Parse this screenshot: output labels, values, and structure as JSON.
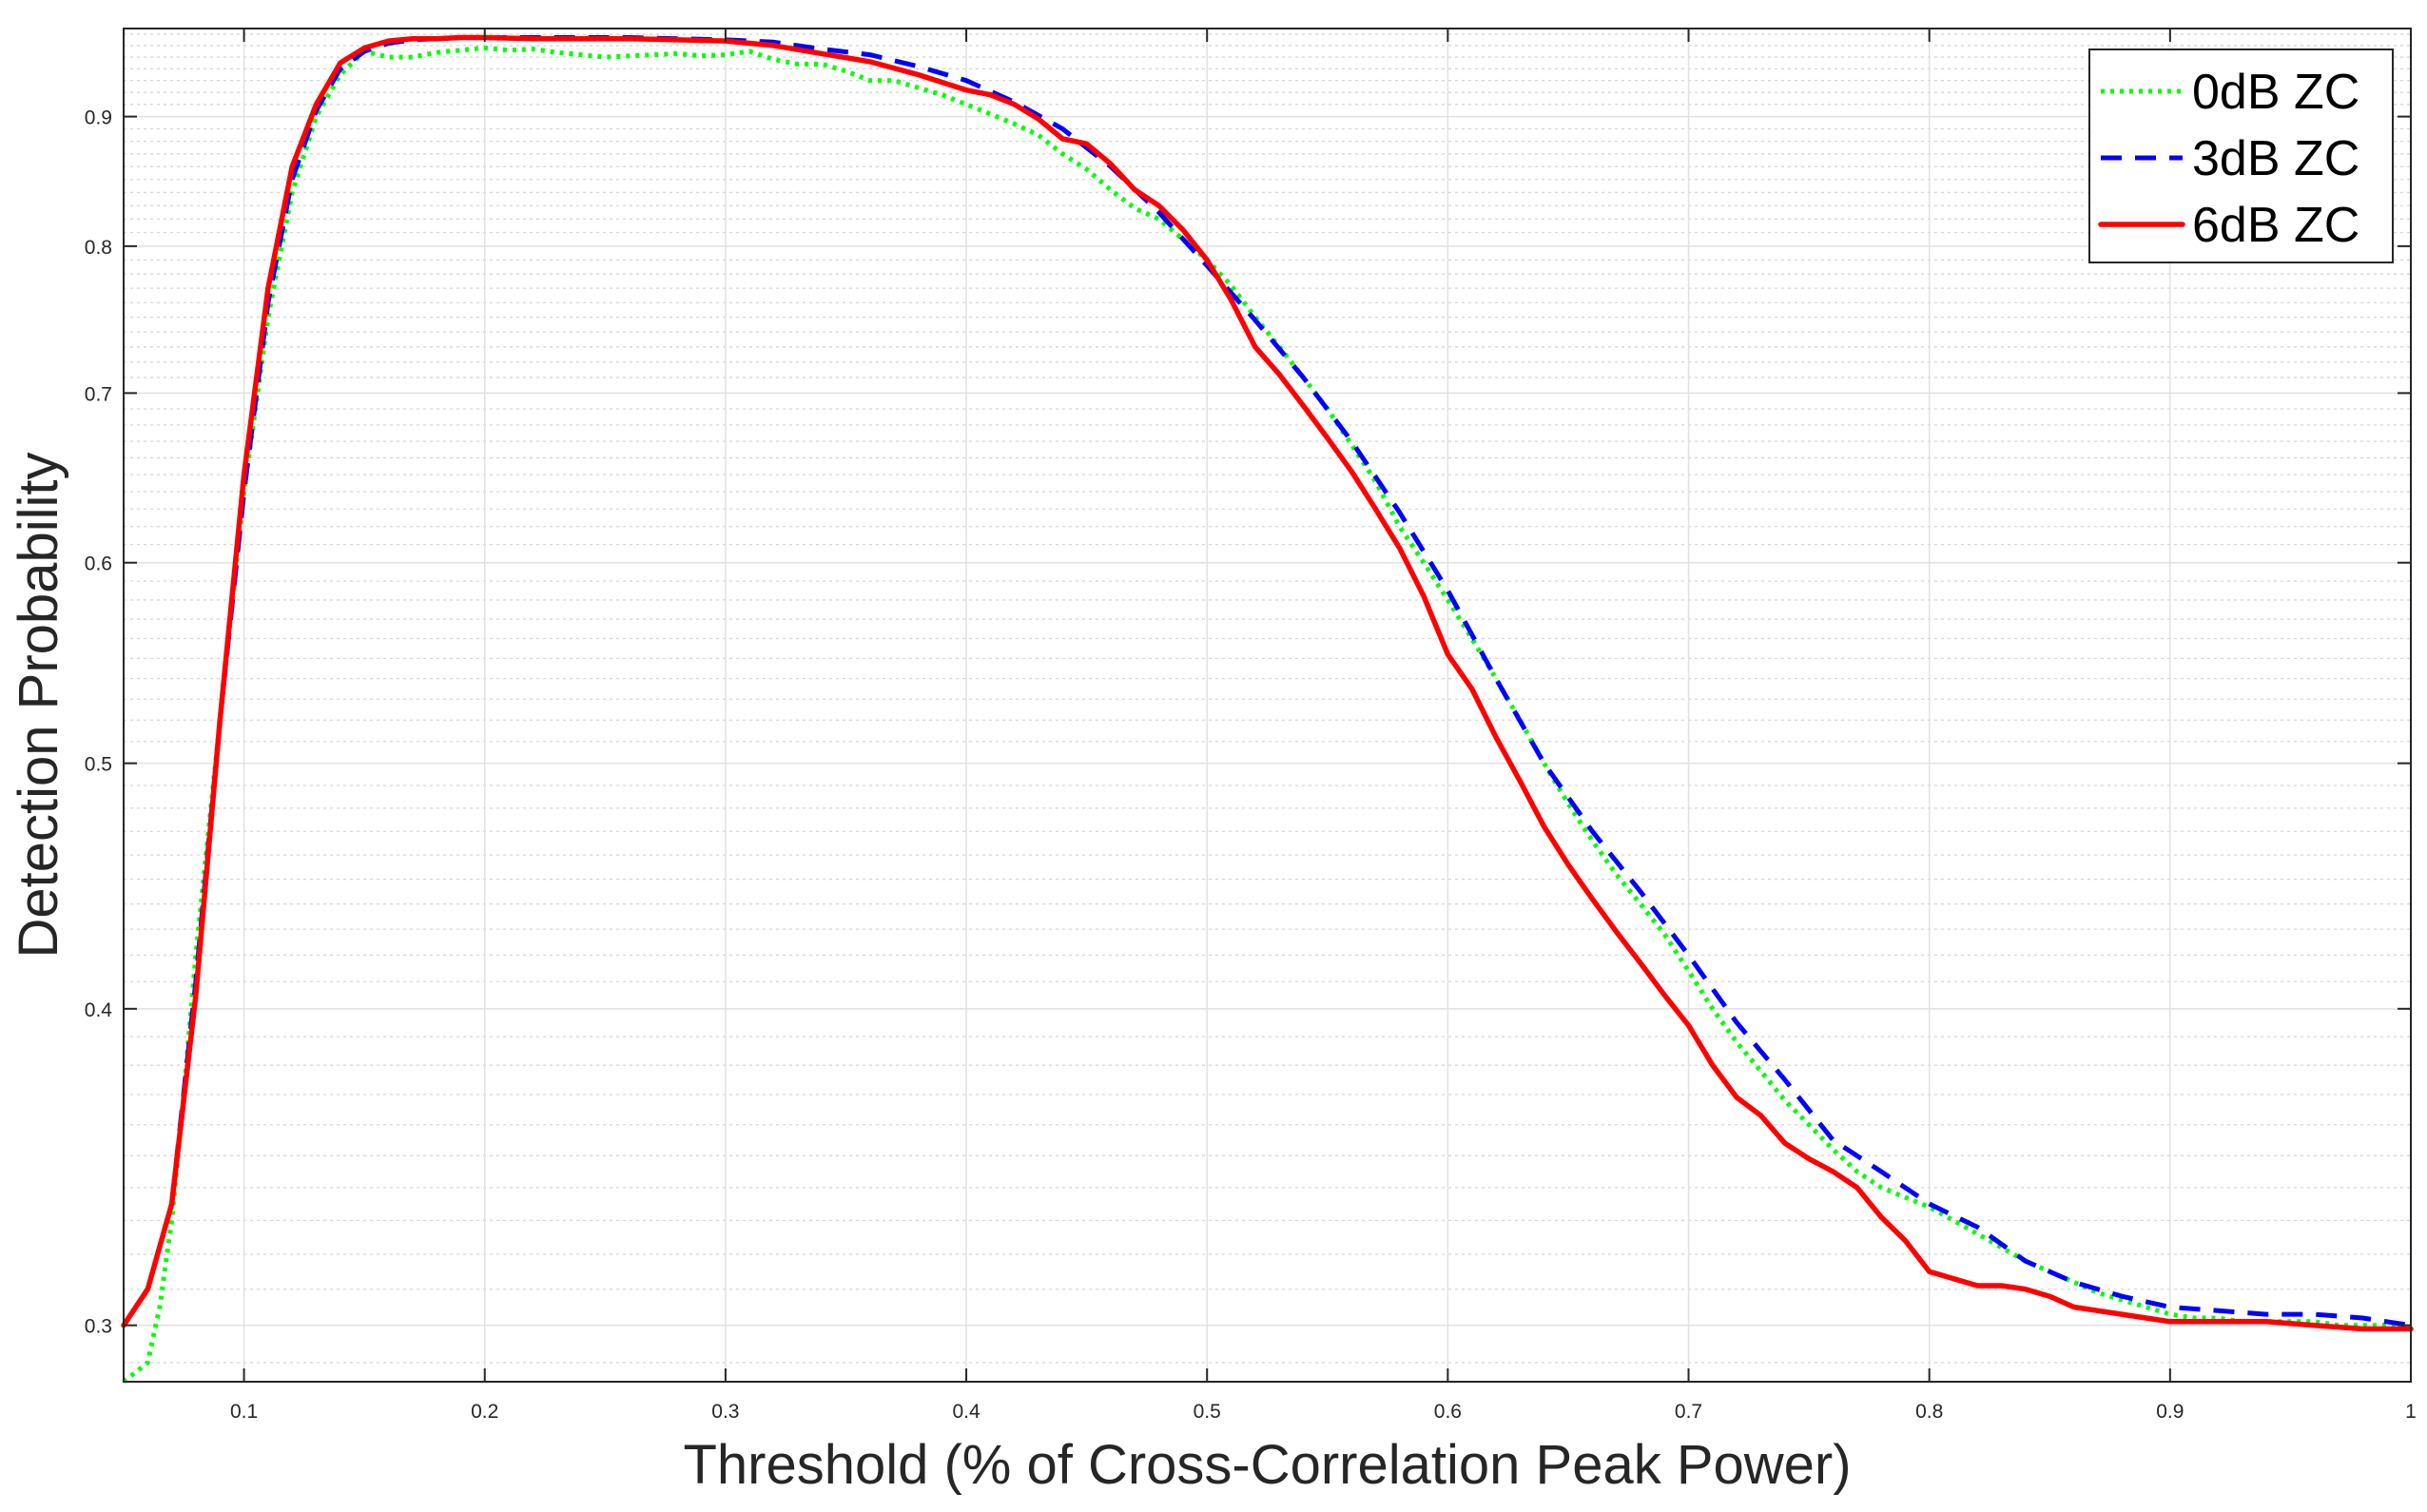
{
  "chart_data": {
    "type": "line",
    "title": "",
    "xlabel": "Threshold (% of Cross-Correlation Peak Power)",
    "ylabel": "Detection Probability",
    "y_scale": "log",
    "xlim": [
      0.05,
      1.0
    ],
    "ylim": [
      0.285,
      0.975
    ],
    "grid": true,
    "legend_position": "top-right",
    "xticks": [
      {
        "value": 0.1,
        "label": "0.1"
      },
      {
        "value": 0.2,
        "label": "0.2"
      },
      {
        "value": 0.3,
        "label": "0.3"
      },
      {
        "value": 0.4,
        "label": "0.4"
      },
      {
        "value": 0.5,
        "label": "0.5"
      },
      {
        "value": 0.6,
        "label": "0.6"
      },
      {
        "value": 0.7,
        "label": "0.7"
      },
      {
        "value": 0.8,
        "label": "0.8"
      },
      {
        "value": 0.9,
        "label": "0.9"
      },
      {
        "value": 1.0,
        "label": "1"
      }
    ],
    "yticks": [
      {
        "value": 0.3,
        "label": "0.3"
      },
      {
        "value": 0.4,
        "label": "0.4"
      },
      {
        "value": 0.5,
        "label": "0.5"
      },
      {
        "value": 0.6,
        "label": "0.6"
      },
      {
        "value": 0.7,
        "label": "0.7"
      },
      {
        "value": 0.8,
        "label": "0.8"
      },
      {
        "value": 0.9,
        "label": "0.9"
      }
    ],
    "y_minor_grid": [
      0.29,
      0.31,
      0.32,
      0.33,
      0.34,
      0.35,
      0.36,
      0.37,
      0.38,
      0.39,
      0.41,
      0.42,
      0.43,
      0.44,
      0.45,
      0.46,
      0.47,
      0.48,
      0.49,
      0.51,
      0.52,
      0.53,
      0.54,
      0.55,
      0.56,
      0.57,
      0.58,
      0.59,
      0.61,
      0.62,
      0.63,
      0.64,
      0.65,
      0.66,
      0.67,
      0.68,
      0.69,
      0.71,
      0.72,
      0.73,
      0.74,
      0.75,
      0.76,
      0.77,
      0.78,
      0.79,
      0.81,
      0.82,
      0.83,
      0.84,
      0.85,
      0.86,
      0.87,
      0.88,
      0.89,
      0.91,
      0.92,
      0.93,
      0.94,
      0.95,
      0.96,
      0.97
    ],
    "series": [
      {
        "name": "0dB ZC",
        "color": "#00ff00",
        "style": "dotted",
        "x": [
          0.05,
          0.06,
          0.065,
          0.07,
          0.075,
          0.08,
          0.09,
          0.1,
          0.11,
          0.12,
          0.13,
          0.14,
          0.15,
          0.16,
          0.17,
          0.18,
          0.19,
          0.2,
          0.21,
          0.22,
          0.23,
          0.24,
          0.25,
          0.26,
          0.27,
          0.28,
          0.29,
          0.3,
          0.31,
          0.32,
          0.33,
          0.34,
          0.35,
          0.36,
          0.37,
          0.38,
          0.39,
          0.4,
          0.41,
          0.42,
          0.43,
          0.44,
          0.45,
          0.46,
          0.47,
          0.48,
          0.49,
          0.5,
          0.51,
          0.52,
          0.53,
          0.54,
          0.55,
          0.56,
          0.57,
          0.58,
          0.59,
          0.6,
          0.61,
          0.62,
          0.63,
          0.64,
          0.65,
          0.66,
          0.67,
          0.68,
          0.69,
          0.7,
          0.71,
          0.72,
          0.73,
          0.74,
          0.75,
          0.76,
          0.77,
          0.78,
          0.79,
          0.8,
          0.81,
          0.82,
          0.83,
          0.84,
          0.85,
          0.86,
          0.87,
          0.88,
          0.89,
          0.9,
          0.91,
          0.92,
          0.93,
          0.94,
          0.95,
          0.96,
          0.97,
          0.98,
          0.99,
          1.0
        ],
        "y": [
          0.285,
          0.29,
          0.305,
          0.33,
          0.37,
          0.42,
          0.52,
          0.64,
          0.75,
          0.84,
          0.9,
          0.935,
          0.955,
          0.95,
          0.95,
          0.954,
          0.956,
          0.958,
          0.956,
          0.957,
          0.954,
          0.952,
          0.95,
          0.951,
          0.952,
          0.953,
          0.951,
          0.952,
          0.955,
          0.948,
          0.944,
          0.944,
          0.938,
          0.93,
          0.93,
          0.924,
          0.918,
          0.91,
          0.902,
          0.894,
          0.885,
          0.87,
          0.858,
          0.842,
          0.828,
          0.82,
          0.805,
          0.79,
          0.772,
          0.75,
          0.73,
          0.71,
          0.69,
          0.668,
          0.646,
          0.62,
          0.6,
          0.58,
          0.56,
          0.54,
          0.52,
          0.5,
          0.482,
          0.466,
          0.452,
          0.44,
          0.428,
          0.414,
          0.4,
          0.388,
          0.378,
          0.368,
          0.36,
          0.352,
          0.345,
          0.34,
          0.337,
          0.334,
          0.33,
          0.326,
          0.322,
          0.318,
          0.315,
          0.312,
          0.309,
          0.307,
          0.305,
          0.303,
          0.302,
          0.302,
          0.301,
          0.301,
          0.301,
          0.301,
          0.3,
          0.3,
          0.3,
          0.3
        ]
      },
      {
        "name": "3dB ZC",
        "color": "#0000ff",
        "style": "dashed",
        "x": [
          0.05,
          0.06,
          0.07,
          0.08,
          0.09,
          0.1,
          0.11,
          0.12,
          0.13,
          0.14,
          0.15,
          0.16,
          0.17,
          0.18,
          0.19,
          0.2,
          0.22,
          0.24,
          0.26,
          0.28,
          0.3,
          0.32,
          0.34,
          0.36,
          0.38,
          0.4,
          0.42,
          0.44,
          0.46,
          0.48,
          0.5,
          0.52,
          0.54,
          0.56,
          0.58,
          0.6,
          0.62,
          0.64,
          0.66,
          0.68,
          0.7,
          0.72,
          0.74,
          0.76,
          0.78,
          0.8,
          0.82,
          0.84,
          0.86,
          0.88,
          0.9,
          0.92,
          0.94,
          0.96,
          0.98,
          1.0
        ],
        "y": [
          0.3,
          0.31,
          0.335,
          0.41,
          0.52,
          0.64,
          0.76,
          0.85,
          0.905,
          0.94,
          0.955,
          0.962,
          0.965,
          0.966,
          0.967,
          0.967,
          0.967,
          0.967,
          0.967,
          0.966,
          0.965,
          0.963,
          0.957,
          0.952,
          0.942,
          0.93,
          0.912,
          0.89,
          0.86,
          0.825,
          0.786,
          0.748,
          0.71,
          0.67,
          0.628,
          0.585,
          0.54,
          0.5,
          0.47,
          0.445,
          0.42,
          0.395,
          0.375,
          0.355,
          0.345,
          0.335,
          0.328,
          0.318,
          0.312,
          0.308,
          0.305,
          0.304,
          0.303,
          0.303,
          0.302,
          0.3
        ]
      },
      {
        "name": "6dB ZC",
        "color": "#ff0000",
        "style": "solid",
        "x": [
          0.05,
          0.06,
          0.07,
          0.08,
          0.09,
          0.1,
          0.11,
          0.12,
          0.13,
          0.14,
          0.15,
          0.16,
          0.17,
          0.18,
          0.19,
          0.2,
          0.22,
          0.24,
          0.26,
          0.28,
          0.3,
          0.32,
          0.34,
          0.36,
          0.38,
          0.4,
          0.41,
          0.42,
          0.43,
          0.44,
          0.45,
          0.46,
          0.47,
          0.48,
          0.49,
          0.5,
          0.51,
          0.52,
          0.53,
          0.54,
          0.55,
          0.56,
          0.57,
          0.58,
          0.59,
          0.6,
          0.61,
          0.62,
          0.63,
          0.64,
          0.65,
          0.66,
          0.67,
          0.68,
          0.69,
          0.7,
          0.71,
          0.72,
          0.73,
          0.74,
          0.75,
          0.76,
          0.77,
          0.78,
          0.79,
          0.8,
          0.81,
          0.82,
          0.83,
          0.84,
          0.85,
          0.86,
          0.87,
          0.88,
          0.89,
          0.9,
          0.92,
          0.94,
          0.96,
          0.98,
          1.0
        ],
        "y": [
          0.3,
          0.31,
          0.335,
          0.405,
          0.52,
          0.65,
          0.77,
          0.86,
          0.91,
          0.945,
          0.958,
          0.964,
          0.966,
          0.966,
          0.967,
          0.967,
          0.966,
          0.966,
          0.966,
          0.965,
          0.964,
          0.96,
          0.953,
          0.946,
          0.935,
          0.922,
          0.918,
          0.91,
          0.898,
          0.882,
          0.878,
          0.862,
          0.842,
          0.83,
          0.812,
          0.79,
          0.762,
          0.73,
          0.712,
          0.692,
          0.672,
          0.652,
          0.63,
          0.608,
          0.582,
          0.552,
          0.535,
          0.512,
          0.492,
          0.472,
          0.456,
          0.442,
          0.429,
          0.417,
          0.405,
          0.394,
          0.38,
          0.369,
          0.363,
          0.354,
          0.349,
          0.345,
          0.34,
          0.331,
          0.324,
          0.315,
          0.313,
          0.311,
          0.311,
          0.31,
          0.308,
          0.305,
          0.304,
          0.303,
          0.302,
          0.301,
          0.301,
          0.301,
          0.3,
          0.299,
          0.299
        ]
      }
    ]
  }
}
